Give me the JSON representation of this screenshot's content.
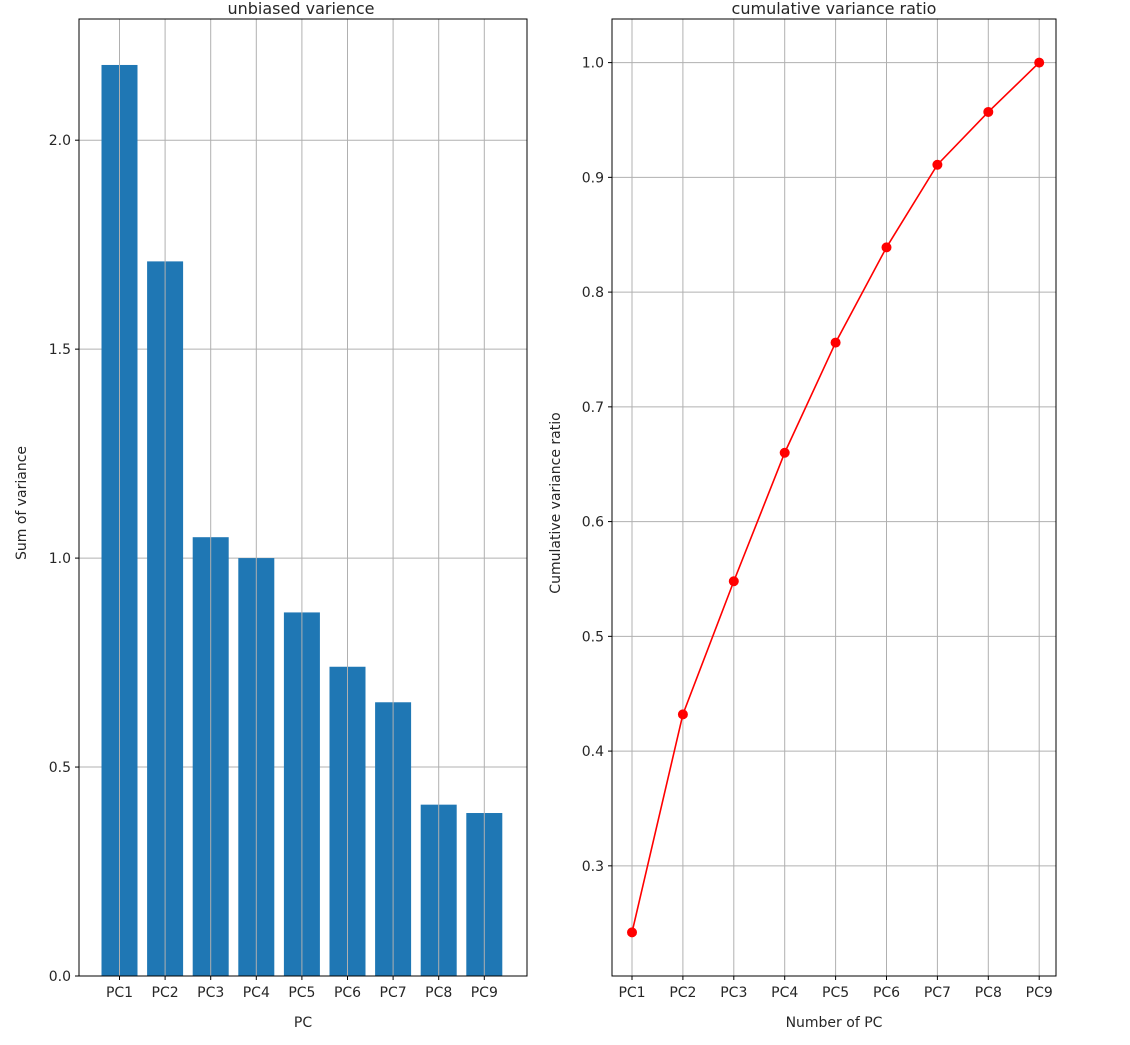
{
  "chart_data": [
    {
      "type": "bar",
      "title": "unbiased varience",
      "xlabel": "PC",
      "ylabel": "Sum of variance",
      "categories": [
        "PC1",
        "PC2",
        "PC3",
        "PC4",
        "PC5",
        "PC6",
        "PC7",
        "PC8",
        "PC9"
      ],
      "values": [
        2.18,
        1.71,
        1.05,
        1.0,
        0.87,
        0.74,
        0.655,
        0.41,
        0.39
      ],
      "ylim": [
        0,
        2.29
      ],
      "yticks": [
        0.0,
        0.5,
        1.0,
        1.5,
        2.0
      ],
      "ytick_labels": [
        "0.0",
        "0.5",
        "1.0",
        "1.5",
        "2.0"
      ],
      "grid": true,
      "color": "#1f77b4"
    },
    {
      "type": "line",
      "title": "cumulative variance ratio",
      "xlabel": "Number of PC",
      "ylabel": "Cumulative variance ratio",
      "categories": [
        "PC1",
        "PC2",
        "PC3",
        "PC4",
        "PC5",
        "PC6",
        "PC7",
        "PC8",
        "PC9"
      ],
      "values": [
        0.242,
        0.432,
        0.548,
        0.66,
        0.756,
        0.839,
        0.911,
        0.957,
        1.0
      ],
      "ylim": [
        0.204,
        1.038
      ],
      "yticks": [
        0.3,
        0.4,
        0.5,
        0.6,
        0.7,
        0.8,
        0.9,
        1.0
      ],
      "ytick_labels": [
        "0.3",
        "0.4",
        "0.5",
        "0.6",
        "0.7",
        "0.8",
        "0.9",
        "1.0"
      ],
      "grid": true,
      "color": "#ff0000",
      "marker": "circle"
    }
  ]
}
